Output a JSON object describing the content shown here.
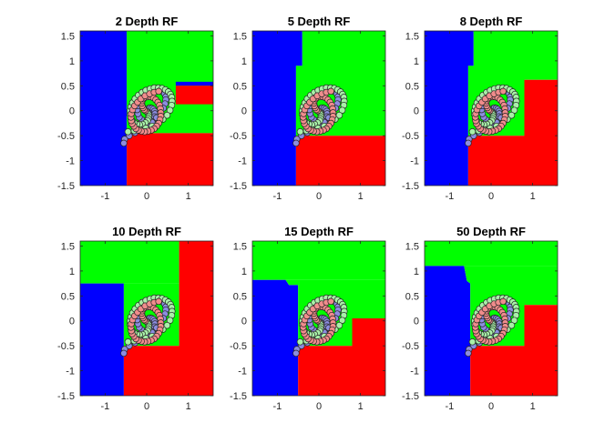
{
  "figure": {
    "layout": "2x3 grid of random-forest decision-region plots on a three-arm spiral dataset"
  },
  "colors": {
    "blue_region": "#0000ff",
    "green_region": "#00ff00",
    "red_region": "#ff0000",
    "blue_points": "#8c8ce0",
    "green_points": "#a8f0a8",
    "red_points": "#f08c8c",
    "point_edge": "#262626",
    "axis": "#262626"
  },
  "chart_data": [
    {
      "type": "scatter",
      "title": "2 Depth RF",
      "xlabel": "",
      "ylabel": "",
      "xlim": [
        -1.6,
        1.6
      ],
      "ylim": [
        -1.5,
        1.6
      ],
      "xticks": [
        "-1",
        "0",
        "1"
      ],
      "yticks": [
        "1.5",
        "1",
        "0.5",
        "0",
        "-0.5",
        "-1",
        "-1.5"
      ],
      "regions": [
        {
          "class": "blue",
          "polygon": [
            [
              -1.6,
              -1.5
            ],
            [
              -1.6,
              1.6
            ],
            [
              -0.48,
              1.6
            ],
            [
              -0.48,
              -1.5
            ]
          ]
        },
        {
          "class": "green",
          "polygon": [
            [
              -0.48,
              -0.45
            ],
            [
              -0.48,
              1.6
            ],
            [
              1.6,
              1.6
            ],
            [
              1.6,
              -0.45
            ]
          ]
        },
        {
          "class": "blue",
          "polygon": [
            [
              0.7,
              0.5
            ],
            [
              0.7,
              0.58
            ],
            [
              1.6,
              0.58
            ],
            [
              1.6,
              0.5
            ]
          ]
        },
        {
          "class": "red",
          "polygon": [
            [
              0.7,
              0.13
            ],
            [
              0.7,
              0.5
            ],
            [
              1.6,
              0.5
            ],
            [
              1.6,
              0.13
            ]
          ]
        },
        {
          "class": "red",
          "polygon": [
            [
              -0.48,
              -1.5
            ],
            [
              -0.48,
              -0.45
            ],
            [
              1.6,
              -0.45
            ],
            [
              1.6,
              -1.5
            ]
          ]
        }
      ]
    },
    {
      "type": "scatter",
      "title": "5 Depth RF",
      "xlabel": "",
      "ylabel": "",
      "xlim": [
        -1.6,
        1.6
      ],
      "ylim": [
        -1.5,
        1.6
      ],
      "xticks": [
        "-1",
        "0",
        "1"
      ],
      "yticks": [
        "1.5",
        "1",
        "0.5",
        "0",
        "-0.5",
        "-1",
        "-1.5"
      ],
      "regions": [
        {
          "class": "blue",
          "polygon": [
            [
              -1.6,
              -1.5
            ],
            [
              -1.6,
              1.6
            ],
            [
              -0.4,
              1.6
            ],
            [
              -0.4,
              0.9
            ],
            [
              -0.55,
              0.9
            ],
            [
              -0.55,
              -1.5
            ]
          ]
        },
        {
          "class": "green",
          "polygon": [
            [
              -0.55,
              -0.5
            ],
            [
              -0.55,
              0.9
            ],
            [
              -0.4,
              0.9
            ],
            [
              -0.4,
              1.6
            ],
            [
              1.6,
              1.6
            ],
            [
              1.6,
              -0.5
            ]
          ]
        },
        {
          "class": "red",
          "polygon": [
            [
              -0.55,
              -1.5
            ],
            [
              -0.55,
              -0.5
            ],
            [
              1.6,
              -0.5
            ],
            [
              1.6,
              -1.5
            ]
          ]
        }
      ]
    },
    {
      "type": "scatter",
      "title": "8 Depth RF",
      "xlabel": "",
      "ylabel": "",
      "xlim": [
        -1.6,
        1.6
      ],
      "ylim": [
        -1.5,
        1.6
      ],
      "xticks": [
        "-1",
        "0",
        "1"
      ],
      "yticks": [
        "1.5",
        "1",
        "0.5",
        "0",
        "-0.5",
        "-1",
        "-1.5"
      ],
      "regions": [
        {
          "class": "blue",
          "polygon": [
            [
              -1.6,
              -1.5
            ],
            [
              -1.6,
              1.6
            ],
            [
              -0.42,
              1.6
            ],
            [
              -0.42,
              0.9
            ],
            [
              -0.55,
              0.9
            ],
            [
              -0.55,
              -1.5
            ]
          ]
        },
        {
          "class": "green",
          "polygon": [
            [
              -0.55,
              -0.5
            ],
            [
              -0.55,
              0.9
            ],
            [
              -0.42,
              0.9
            ],
            [
              -0.42,
              1.6
            ],
            [
              1.6,
              1.6
            ],
            [
              1.6,
              0.62
            ],
            [
              0.8,
              0.62
            ],
            [
              0.8,
              -0.5
            ]
          ]
        },
        {
          "class": "red",
          "polygon": [
            [
              -0.55,
              -1.5
            ],
            [
              -0.55,
              -0.5
            ],
            [
              0.8,
              -0.5
            ],
            [
              0.8,
              0.62
            ],
            [
              1.6,
              0.62
            ],
            [
              1.6,
              -1.5
            ]
          ]
        }
      ]
    },
    {
      "type": "scatter",
      "title": "10 Depth RF",
      "xlabel": "",
      "ylabel": "",
      "xlim": [
        -1.6,
        1.6
      ],
      "ylim": [
        -1.5,
        1.6
      ],
      "xticks": [
        "-1",
        "0",
        "1"
      ],
      "yticks": [
        "1.5",
        "1",
        "0.5",
        "0",
        "-0.5",
        "-1",
        "-1.5"
      ],
      "regions": [
        {
          "class": "green",
          "polygon": [
            [
              -1.6,
              0.75
            ],
            [
              -1.6,
              1.6
            ],
            [
              0.78,
              1.6
            ],
            [
              0.78,
              0.75
            ]
          ]
        },
        {
          "class": "blue",
          "polygon": [
            [
              -1.6,
              -1.5
            ],
            [
              -1.6,
              0.75
            ],
            [
              -0.55,
              0.75
            ],
            [
              -0.55,
              -1.5
            ]
          ]
        },
        {
          "class": "green",
          "polygon": [
            [
              -0.55,
              -0.5
            ],
            [
              -0.55,
              0.75
            ],
            [
              0.78,
              0.75
            ],
            [
              0.78,
              -0.5
            ]
          ]
        },
        {
          "class": "red",
          "polygon": [
            [
              -0.55,
              -1.5
            ],
            [
              -0.55,
              -0.5
            ],
            [
              0.78,
              -0.5
            ],
            [
              0.78,
              1.6
            ],
            [
              1.6,
              1.6
            ],
            [
              1.6,
              -1.5
            ]
          ]
        }
      ]
    },
    {
      "type": "scatter",
      "title": "15 Depth RF",
      "xlabel": "",
      "ylabel": "",
      "xlim": [
        -1.6,
        1.6
      ],
      "ylim": [
        -1.5,
        1.6
      ],
      "xticks": [
        "-1",
        "0",
        "1"
      ],
      "yticks": [
        "1.5",
        "1",
        "0.5",
        "0",
        "-0.5",
        "-1",
        "-1.5"
      ],
      "regions": [
        {
          "class": "green",
          "polygon": [
            [
              -1.6,
              0.82
            ],
            [
              -1.6,
              1.6
            ],
            [
              1.6,
              1.6
            ],
            [
              1.6,
              0.82
            ]
          ]
        },
        {
          "class": "blue",
          "polygon": [
            [
              -1.6,
              -1.5
            ],
            [
              -1.6,
              0.82
            ],
            [
              -0.8,
              0.82
            ],
            [
              -0.72,
              0.72
            ],
            [
              -0.5,
              0.72
            ],
            [
              -0.5,
              -1.5
            ]
          ]
        },
        {
          "class": "green",
          "polygon": [
            [
              -0.5,
              -0.5
            ],
            [
              -0.5,
              0.72
            ],
            [
              -0.72,
              0.72
            ],
            [
              -0.8,
              0.82
            ],
            [
              1.6,
              0.82
            ],
            [
              1.6,
              0.05
            ],
            [
              0.8,
              0.05
            ],
            [
              0.8,
              -0.5
            ]
          ]
        },
        {
          "class": "red",
          "polygon": [
            [
              -0.5,
              -1.5
            ],
            [
              -0.5,
              -0.5
            ],
            [
              0.8,
              -0.5
            ],
            [
              0.8,
              0.05
            ],
            [
              1.6,
              0.05
            ],
            [
              1.6,
              -1.5
            ]
          ]
        }
      ]
    },
    {
      "type": "scatter",
      "title": "50 Depth RF",
      "xlabel": "",
      "ylabel": "",
      "xlim": [
        -1.6,
        1.6
      ],
      "ylim": [
        -1.5,
        1.6
      ],
      "xticks": [
        "-1",
        "0",
        "1"
      ],
      "yticks": [
        "1.5",
        "1",
        "0.5",
        "0",
        "-0.5",
        "-1",
        "-1.5"
      ],
      "regions": [
        {
          "class": "green",
          "polygon": [
            [
              -1.6,
              1.1
            ],
            [
              -1.6,
              1.6
            ],
            [
              1.6,
              1.6
            ],
            [
              1.6,
              1.1
            ]
          ]
        },
        {
          "class": "blue",
          "polygon": [
            [
              -1.6,
              -1.5
            ],
            [
              -1.6,
              1.1
            ],
            [
              -0.65,
              1.1
            ],
            [
              -0.58,
              0.8
            ],
            [
              -0.5,
              0.75
            ],
            [
              -0.5,
              -1.5
            ]
          ]
        },
        {
          "class": "green",
          "polygon": [
            [
              -0.5,
              -0.5
            ],
            [
              -0.5,
              0.75
            ],
            [
              -0.58,
              0.8
            ],
            [
              -0.65,
              1.1
            ],
            [
              1.6,
              1.1
            ],
            [
              1.6,
              0.32
            ],
            [
              0.8,
              0.32
            ],
            [
              0.8,
              -0.5
            ]
          ]
        },
        {
          "class": "red",
          "polygon": [
            [
              -0.5,
              -1.5
            ],
            [
              -0.5,
              -0.5
            ],
            [
              0.8,
              -0.5
            ],
            [
              0.8,
              0.32
            ],
            [
              1.6,
              0.32
            ],
            [
              1.6,
              -1.5
            ]
          ]
        }
      ]
    }
  ],
  "spiral_data": {
    "class_order": [
      "blue",
      "green",
      "red"
    ],
    "points_per_class": 40,
    "blue": {
      "x": [
        0.03,
        0.05,
        0.08,
        0.12,
        0.16,
        0.19,
        0.2,
        0.19,
        0.15,
        0.09,
        0.02,
        -0.05,
        -0.12,
        -0.18,
        -0.21,
        -0.23,
        -0.22,
        -0.19,
        -0.14,
        -0.07,
        0.01,
        0.09,
        0.18,
        0.26,
        0.33,
        0.39,
        0.43,
        0.46,
        0.46,
        0.44,
        0.4,
        0.33,
        0.24,
        0.13,
        0.0,
        -0.14,
        -0.28,
        -0.42,
        -0.53,
        -0.55
      ],
      "y": [
        0.03,
        0.05,
        0.06,
        0.05,
        0.03,
        -0.01,
        -0.06,
        -0.12,
        -0.17,
        -0.2,
        -0.22,
        -0.21,
        -0.18,
        -0.13,
        -0.06,
        0.02,
        0.1,
        0.18,
        0.26,
        0.32,
        0.37,
        0.4,
        0.42,
        0.42,
        0.41,
        0.38,
        0.34,
        0.28,
        0.22,
        0.14,
        0.05,
        -0.04,
        -0.14,
        -0.23,
        -0.3,
        -0.37,
        -0.44,
        -0.5,
        -0.57,
        -0.65
      ]
    },
    "green": {
      "x": [
        0.03,
        0.04,
        0.05,
        0.05,
        0.04,
        0.02,
        -0.03,
        -0.1,
        -0.17,
        -0.24,
        -0.3,
        -0.35,
        -0.38,
        -0.4,
        -0.4,
        -0.38,
        -0.34,
        -0.28,
        -0.2,
        -0.11,
        -0.02,
        0.08,
        0.18,
        0.28,
        0.37,
        0.45,
        0.52,
        0.57,
        0.6,
        0.61,
        0.6,
        0.56,
        0.49,
        0.39,
        0.27,
        0.13,
        -0.02,
        -0.16,
        -0.3,
        -0.45
      ],
      "y": [
        -0.03,
        -0.05,
        -0.08,
        -0.12,
        -0.16,
        -0.2,
        -0.24,
        -0.27,
        -0.28,
        -0.27,
        -0.24,
        -0.2,
        -0.14,
        -0.07,
        0.0,
        0.08,
        0.16,
        0.24,
        0.31,
        0.37,
        0.41,
        0.44,
        0.46,
        0.46,
        0.45,
        0.42,
        0.38,
        0.33,
        0.27,
        0.19,
        0.11,
        0.01,
        -0.09,
        -0.17,
        -0.25,
        -0.31,
        -0.35,
        -0.38,
        -0.4,
        -0.42
      ]
    },
    "red": {
      "x": [
        -0.03,
        -0.06,
        -0.09,
        -0.11,
        -0.12,
        -0.11,
        -0.08,
        -0.03,
        0.03,
        0.09,
        0.16,
        0.22,
        0.27,
        0.31,
        0.33,
        0.34,
        0.34,
        0.32,
        0.29,
        0.24,
        0.18,
        0.11,
        0.03,
        -0.05,
        -0.13,
        -0.2,
        -0.26,
        -0.31,
        -0.35,
        -0.37,
        -0.38,
        -0.37,
        -0.34,
        -0.29,
        -0.22,
        -0.14,
        -0.04,
        0.07,
        0.18,
        0.29
      ],
      "y": [
        0.0,
        0.02,
        0.06,
        0.1,
        0.15,
        0.2,
        0.24,
        0.27,
        0.28,
        0.28,
        0.26,
        0.22,
        0.17,
        0.11,
        0.04,
        -0.04,
        -0.11,
        -0.18,
        -0.25,
        -0.31,
        -0.36,
        -0.39,
        -0.41,
        -0.42,
        -0.41,
        -0.39,
        -0.36,
        -0.31,
        -0.26,
        -0.2,
        -0.13,
        -0.06,
        0.02,
        0.1,
        0.17,
        0.24,
        0.3,
        0.34,
        0.37,
        0.39
      ]
    }
  }
}
